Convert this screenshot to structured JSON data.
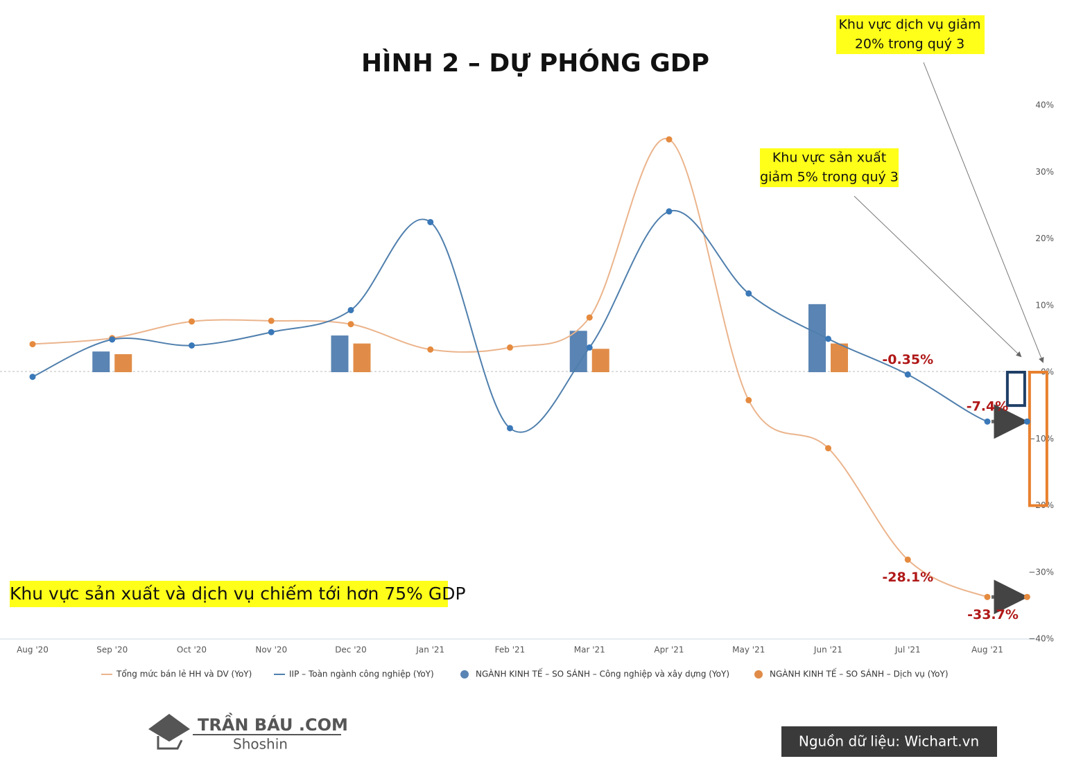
{
  "chart_data": {
    "type": "line",
    "title": "HÌNH 2 – DỰ PHÓNG GDP",
    "categories": [
      "Aug '20",
      "Sep '20",
      "Oct '20",
      "Nov '20",
      "Dec '20",
      "Jan '21",
      "Feb '21",
      "Mar '21",
      "Apr '21",
      "May '21",
      "Jun '21",
      "Jul '21",
      "Aug '21",
      null
    ],
    "series": [
      {
        "name": "Tổng mức bán lẻ HH và DV (YoY)",
        "type": "line",
        "color": "#ebb48c",
        "marker_color": "#e58a3e",
        "values": [
          4.2,
          5.1,
          7.6,
          7.7,
          7.2,
          3.4,
          3.7,
          8.2,
          34.9,
          -4.2,
          -11.4,
          -28.1,
          -33.7,
          -33.7
        ],
        "value_labels": [
          null,
          null,
          null,
          null,
          null,
          null,
          null,
          null,
          null,
          null,
          null,
          "-28.1%",
          "-33.7%",
          null
        ]
      },
      {
        "name": "IIP – Toàn ngành công nghiệp (YoY)",
        "type": "line",
        "color": "#4f7fad",
        "marker_color": "#3a78b8",
        "values": [
          -0.7,
          4.9,
          4.0,
          6.0,
          9.3,
          22.5,
          -8.4,
          3.7,
          24.1,
          11.8,
          5.0,
          -0.35,
          -7.4,
          -7.4
        ],
        "value_labels": [
          null,
          null,
          null,
          null,
          null,
          null,
          null,
          null,
          null,
          null,
          null,
          "-0.35%",
          "-7.4%",
          null
        ]
      },
      {
        "name": "NGÀNH KINH TẾ – SO SÁNH – Công nghiệp và xây dựng (YoY)",
        "type": "bar",
        "color": "#5a84b3",
        "projection_color": "#1f3f66",
        "values": [
          null,
          3.1,
          null,
          null,
          5.5,
          null,
          null,
          6.2,
          null,
          null,
          10.2,
          null,
          null,
          -5
        ]
      },
      {
        "name": "NGÀNH KINH TẾ – SO SÁNH – Dịch vụ (YoY)",
        "type": "bar",
        "color": "#e08c48",
        "projection_color": "#e8802f",
        "values": [
          null,
          2.7,
          null,
          null,
          4.3,
          null,
          null,
          3.5,
          null,
          null,
          4.3,
          null,
          null,
          -20
        ]
      }
    ],
    "ylim": [
      -40,
      40
    ],
    "yticks": [
      {
        "value": 40,
        "label": "40%"
      },
      {
        "value": 30,
        "label": "30%"
      },
      {
        "value": 20,
        "label": "20%"
      },
      {
        "value": 10,
        "label": "10%"
      },
      {
        "value": 0,
        "label": "0%"
      },
      {
        "value": -10,
        "label": "−10%"
      },
      {
        "value": -20,
        "label": "−20%"
      },
      {
        "value": -30,
        "label": "−30%"
      },
      {
        "value": -40,
        "label": "−40%"
      }
    ],
    "grid": false,
    "annotations": [
      {
        "lines": [
          "Khu vực dịch vụ giảm",
          "20% trong quý 3"
        ]
      },
      {
        "lines": [
          "Khu vực sản xuất",
          "giảm 5% trong quý 3"
        ]
      },
      {
        "lines": [
          "Khu vực sản xuất và dịch vụ chiếm tới hơn 75% GDP"
        ]
      }
    ],
    "logo": {
      "name": "TRẦN BÁU .COM",
      "tagline": "Shoshin"
    },
    "source": "Nguồn dữ liệu: Wichart.vn"
  }
}
